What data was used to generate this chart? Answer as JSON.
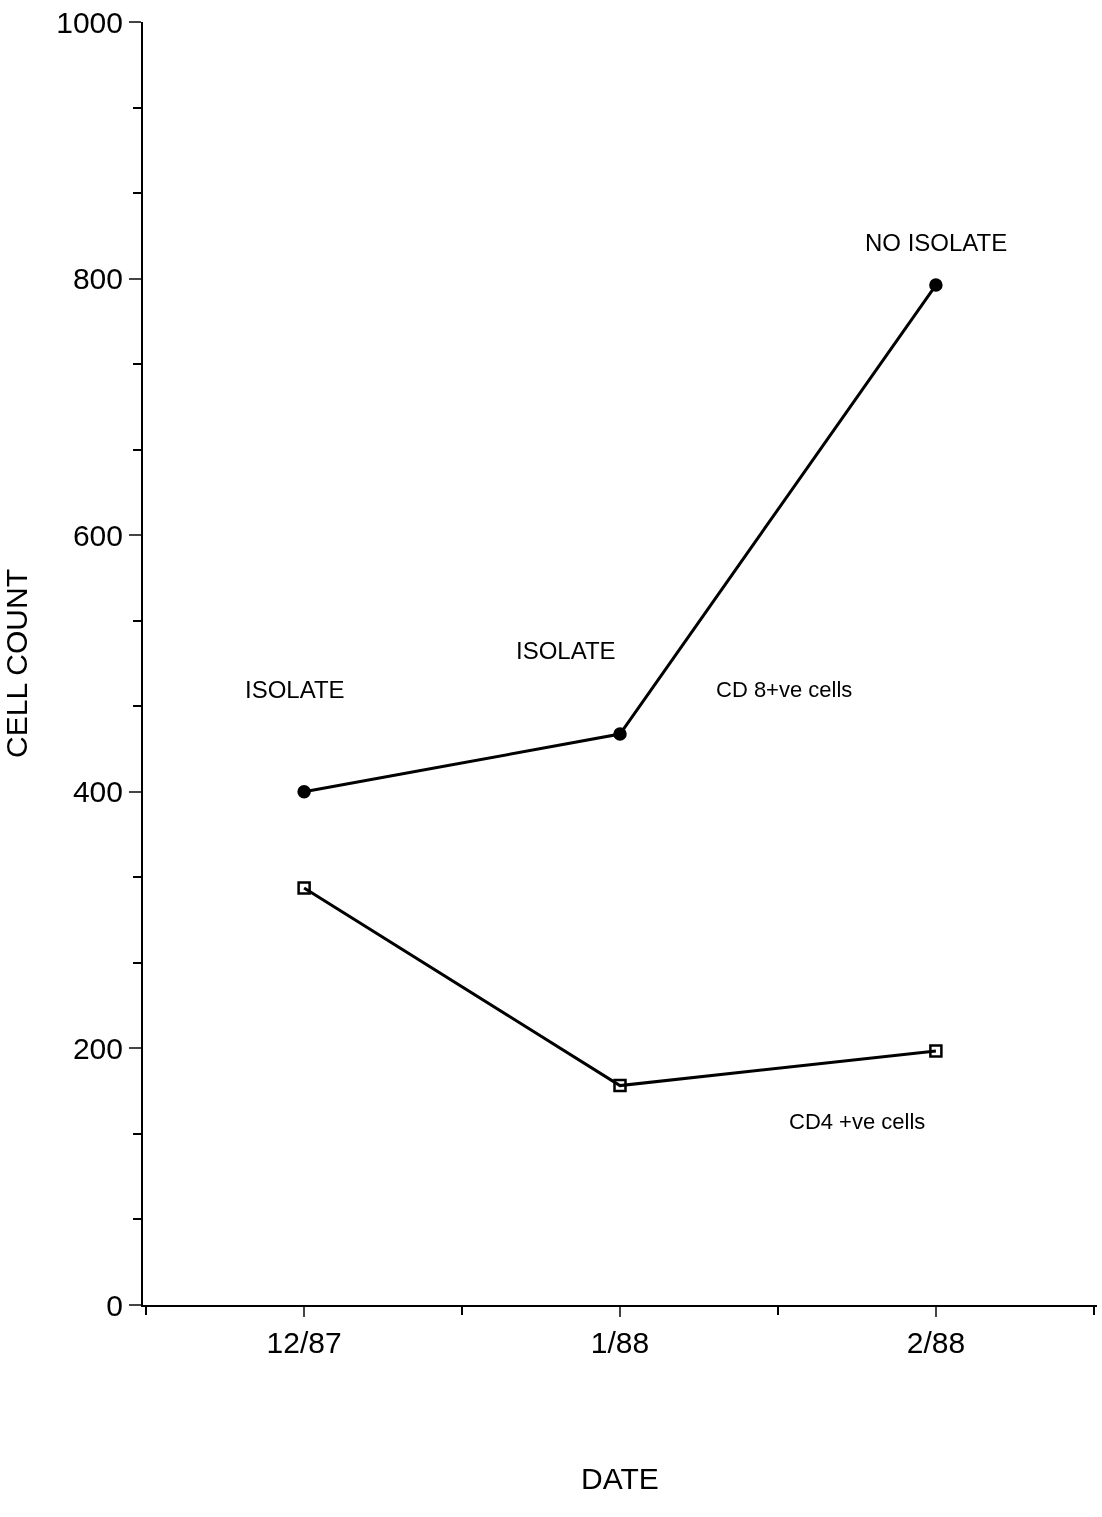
{
  "chart_data": {
    "type": "line",
    "xlabel": "DATE",
    "ylabel": "CELL COUNT",
    "categories": [
      "12/87",
      "1/88",
      "2/88"
    ],
    "series": [
      {
        "name": "CD 8+ve cells",
        "color": "#000000",
        "marker": "circle",
        "values": [
          400,
          445,
          795
        ]
      },
      {
        "name": "CD4 +ve cells",
        "color": "#000000",
        "marker": "square",
        "values": [
          325,
          171,
          198
        ]
      }
    ],
    "ylim": [
      0,
      1000
    ],
    "yticks": [
      0,
      200,
      400,
      600,
      800,
      1000
    ],
    "legend": false,
    "line_style": "solid",
    "annotations": [
      "ISOLATE",
      "ISOLATE",
      "NO ISOLATE"
    ]
  }
}
